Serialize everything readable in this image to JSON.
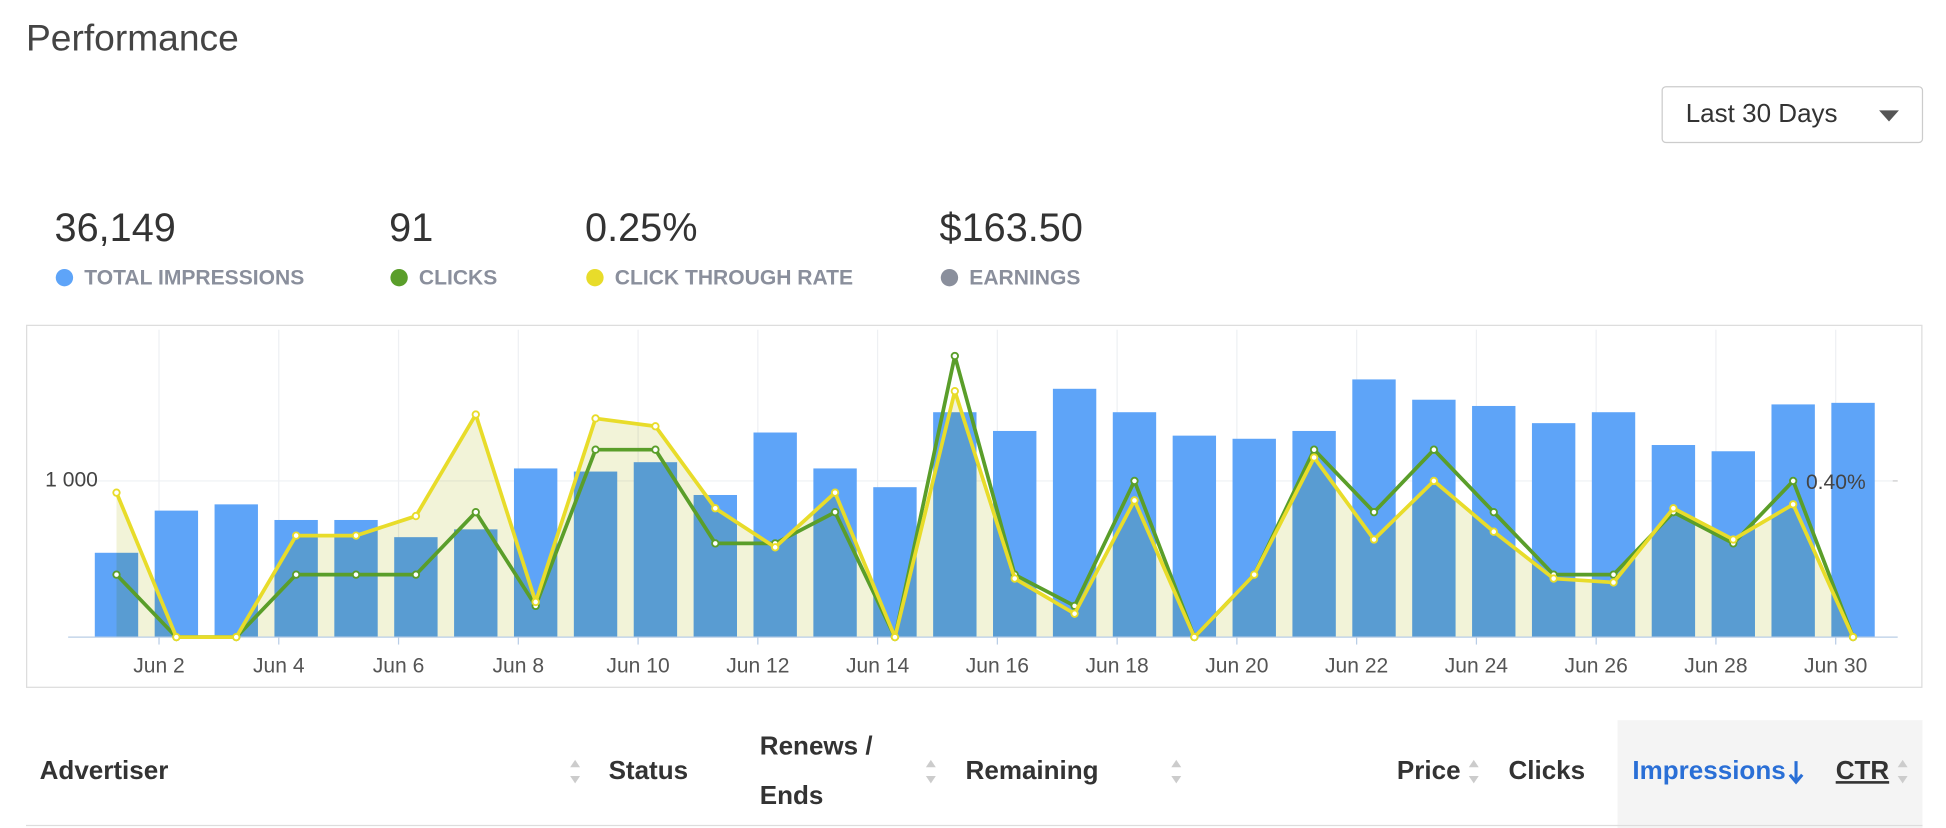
{
  "header": {
    "title": "Performance",
    "range_select": "Last 30 Days"
  },
  "summary": [
    {
      "value": "36,149",
      "label": "TOTAL IMPRESSIONS",
      "color": "#5ea4f8"
    },
    {
      "value": "91",
      "label": "CLICKS",
      "color": "#5a9e2a"
    },
    {
      "value": "0.25%",
      "label": "CLICK THROUGH RATE",
      "color": "#e8dc2a"
    },
    {
      "value": "$163.50",
      "label": "EARNINGS",
      "color": "#8a8f9c"
    }
  ],
  "chart_data": {
    "type": "combo",
    "categories": [
      null,
      "Jun 2",
      null,
      "Jun 4",
      null,
      "Jun 6",
      null,
      "Jun 8",
      null,
      "Jun 10",
      null,
      "Jun 12",
      null,
      "Jun 14",
      null,
      "Jun 16",
      null,
      "Jun 18",
      null,
      "Jun 20",
      null,
      "Jun 22",
      null,
      "Jun 24",
      null,
      "Jun 26",
      null,
      "Jun 28",
      null,
      "Jun 30"
    ],
    "series": [
      {
        "kind": "bar",
        "color": "#5ea4f8",
        "values": [
          540,
          810,
          850,
          750,
          750,
          640,
          690,
          1080,
          1060,
          1120,
          910,
          1310,
          1080,
          960,
          1440,
          1320,
          1590,
          1440,
          1290,
          1270,
          1320,
          1650,
          1520,
          1480,
          1370,
          1440,
          1230,
          1190,
          1490,
          1500
        ]
      },
      {
        "kind": "line",
        "axis": "y3",
        "color": "#5a9e2a",
        "values": [
          2,
          0,
          0,
          2,
          2,
          2,
          4,
          1,
          6,
          6,
          3,
          3,
          4,
          0,
          9,
          2,
          1,
          5,
          0,
          2,
          6,
          4,
          6,
          4,
          2,
          2,
          4,
          3,
          5,
          0
        ]
      },
      {
        "kind": "line",
        "axis": "y2",
        "color": "#e8dc2a",
        "area": "#f2f3d8",
        "values": [
          0.37,
          0,
          0,
          0.26,
          0.26,
          0.31,
          0.57,
          0.09,
          0.56,
          0.54,
          0.33,
          0.23,
          0.37,
          0,
          0.63,
          0.15,
          0.06,
          0.35,
          0,
          0.16,
          0.46,
          0.25,
          0.4,
          0.27,
          0.15,
          0.14,
          0.33,
          0.25,
          0.34,
          0
        ]
      }
    ],
    "ylim": [
      0,
      2000
    ],
    "yticks": [
      {
        "value": 1000,
        "label": "1 000"
      }
    ],
    "y2lim": [
      0,
      0.8
    ],
    "y2ticks": [
      {
        "value": 0.4,
        "label": "0.40%"
      }
    ],
    "y3lim": [
      0,
      10
    ],
    "grid": true
  },
  "table": {
    "columns": [
      {
        "lines": [
          "Advertiser"
        ],
        "sortable": true
      },
      {
        "lines": [
          "Status"
        ],
        "sortable": false
      },
      {
        "lines": [
          "Renews /",
          "Ends"
        ],
        "sortable": true
      },
      {
        "lines": [
          "Remaining"
        ],
        "sortable": true
      },
      {
        "lines": [
          "Price"
        ],
        "sortable": true
      },
      {
        "lines": [
          "Clicks"
        ],
        "sortable": false
      },
      {
        "lines": [
          "Impressions"
        ],
        "sortable": false,
        "sorted": true
      },
      {
        "lines": [
          "CTR"
        ],
        "sortable": true
      }
    ]
  }
}
